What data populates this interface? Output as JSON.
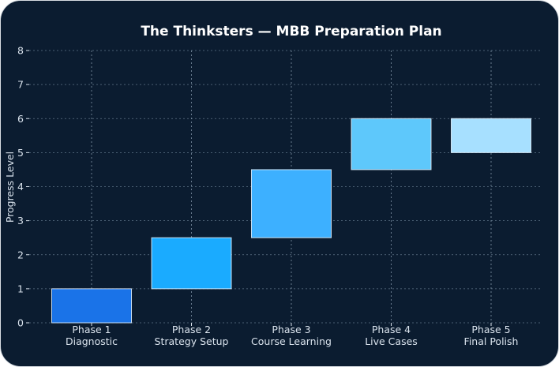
{
  "chart_data": {
    "type": "bar",
    "subtype": "floating",
    "title": "The Thinksters — MBB Preparation Plan",
    "xlabel": "",
    "ylabel": "Progress Level",
    "ylim": [
      0,
      8
    ],
    "yticks": [
      0,
      1,
      2,
      3,
      4,
      5,
      6,
      7,
      8
    ],
    "grid": true,
    "background": "#0b1c30",
    "categories": [
      {
        "line1": "Phase 1",
        "line2": "Diagnostic"
      },
      {
        "line1": "Phase 2",
        "line2": "Strategy Setup"
      },
      {
        "line1": "Phase 3",
        "line2": "Course Learning"
      },
      {
        "line1": "Phase 4",
        "line2": "Live Cases"
      },
      {
        "line1": "Phase 5",
        "line2": "Final Polish"
      }
    ],
    "bars": [
      {
        "start": 0,
        "end": 1,
        "color": "#1a73e8"
      },
      {
        "start": 1,
        "end": 2.5,
        "color": "#1aabff"
      },
      {
        "start": 2.5,
        "end": 4.5,
        "color": "#3db0ff"
      },
      {
        "start": 4.5,
        "end": 6,
        "color": "#5ec8fb"
      },
      {
        "start": 5,
        "end": 6,
        "color": "#a7e0ff"
      }
    ]
  }
}
